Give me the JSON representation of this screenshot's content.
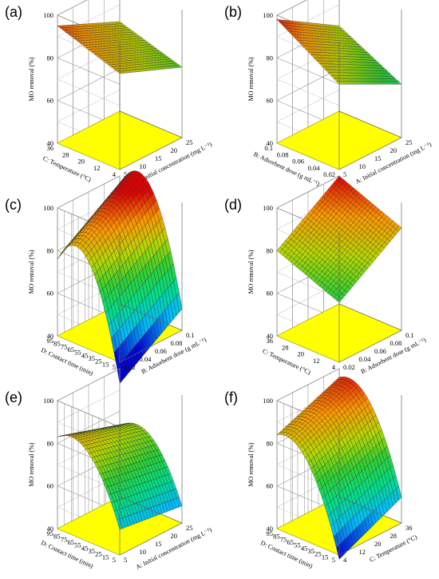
{
  "figure": {
    "z_axis_label": "MO removal (%)",
    "z_ticks": [
      "40",
      "60",
      "80",
      "100"
    ],
    "floor_color": "#ffff00",
    "colormap": [
      "#0000d8",
      "#00bfff",
      "#00e08a",
      "#2fd12f",
      "#b8d800",
      "#ff9900",
      "#e00000"
    ]
  },
  "chart_data": [
    {
      "type": "surface",
      "label": "(a)",
      "xlabel": "A: Initial concentration (mg L⁻¹)",
      "ylabel": "C: Temperature (°C)",
      "zlabel": "MO removal (%)",
      "x_ticks": [
        "5",
        "10",
        "15",
        "20",
        "25"
      ],
      "y_ticks": [
        "4",
        "12",
        "20",
        "28",
        "36"
      ],
      "z_ticks": [
        "40",
        "60",
        "80",
        "100"
      ],
      "zlim": [
        40,
        100
      ],
      "x": [
        5,
        25
      ],
      "y": [
        4,
        36
      ],
      "z_corners": {
        "x_min_y_min": 85,
        "x_max_y_min": 73,
        "x_min_y_max": 95,
        "x_max_y_max": 82
      },
      "z_curvature": {
        "x": 0,
        "y": 0
      }
    },
    {
      "type": "surface",
      "label": "(b)",
      "xlabel": "A: Initial concentration (mg L⁻¹)",
      "ylabel": "B: Adsorbent dose (g mL⁻¹)",
      "zlabel": "MO removal (%)",
      "x_ticks": [
        "5",
        "10",
        "15",
        "20",
        "25"
      ],
      "y_ticks": [
        "0.02",
        "0.04",
        "0.06",
        "0.08",
        "0.1"
      ],
      "z_ticks": [
        "40",
        "60",
        "80",
        "100"
      ],
      "zlim": [
        40,
        100
      ],
      "x": [
        5,
        25
      ],
      "y": [
        0.02,
        0.1
      ],
      "z_corners": {
        "x_min_y_min": 80,
        "x_max_y_min": 65,
        "x_min_y_max": 98,
        "x_max_y_max": 80
      },
      "z_curvature": {
        "x": 0,
        "y": 0
      }
    },
    {
      "type": "surface",
      "label": "(c)",
      "xlabel": "B: Adsorbent dose (g mL⁻¹)",
      "ylabel": "D: Contact time (min)",
      "zlabel": "MO removal (%)",
      "x_ticks": [
        "0.02",
        "0.04",
        "0.06",
        "0.08",
        "0.1"
      ],
      "y_ticks": [
        "5",
        "15",
        "25",
        "35",
        "45",
        "55",
        "65",
        "75",
        "85",
        "95"
      ],
      "z_ticks": [
        "40",
        "60",
        "80",
        "100"
      ],
      "zlim": [
        40,
        100
      ],
      "x": [
        0.02,
        0.1
      ],
      "y": [
        5,
        95
      ],
      "z_corners": {
        "x_min_y_min": 30,
        "x_max_y_min": 50,
        "x_min_y_max": 76,
        "x_max_y_max": 96
      },
      "z_curvature": {
        "x": 0,
        "y": 28
      }
    },
    {
      "type": "surface",
      "label": "(d)",
      "xlabel": "B: Adsorbent dose (g mL⁻¹)",
      "ylabel": "C: Temperature (°C)",
      "zlabel": "MO removal (%)",
      "x_ticks": [
        "0.02",
        "0.04",
        "0.06",
        "0.08",
        "0.1"
      ],
      "y_ticks": [
        "4",
        "12",
        "20",
        "28",
        "36"
      ],
      "z_ticks": [
        "40",
        "60",
        "80",
        "100"
      ],
      "zlim": [
        40,
        100
      ],
      "x": [
        0.02,
        0.1
      ],
      "y": [
        4,
        36
      ],
      "z_corners": {
        "x_min_y_min": 68,
        "x_max_y_min": 88,
        "x_min_y_max": 80,
        "x_max_y_max": 100
      },
      "z_curvature": {
        "x": 0,
        "y": 0
      }
    },
    {
      "type": "surface",
      "label": "(e)",
      "xlabel": "A: Initial concentration (mg L⁻¹)",
      "ylabel": "D: Contact time (min)",
      "zlabel": "MO removal (%)",
      "x_ticks": [
        "5",
        "10",
        "15",
        "20",
        "25"
      ],
      "y_ticks": [
        "5",
        "15",
        "25",
        "35",
        "45",
        "55",
        "65",
        "75",
        "85",
        "95"
      ],
      "z_ticks": [
        "40",
        "60",
        "80",
        "100"
      ],
      "zlim": [
        40,
        100
      ],
      "x": [
        5,
        25
      ],
      "y": [
        5,
        95
      ],
      "z_corners": {
        "x_min_y_min": 52,
        "x_max_y_min": 48,
        "x_min_y_max": 83,
        "x_max_y_max": 73
      },
      "z_curvature": {
        "x": 0,
        "y": 14
      }
    },
    {
      "type": "surface",
      "label": "(f)",
      "xlabel": "C: Temperature (°C)",
      "ylabel": "D: Contact time (min)",
      "zlabel": "MO removal (%)",
      "x_ticks": [
        "4",
        "12",
        "20",
        "28",
        "36"
      ],
      "y_ticks": [
        "5",
        "15",
        "25",
        "35",
        "45",
        "55",
        "65",
        "75",
        "85",
        "95"
      ],
      "z_ticks": [
        "40",
        "60",
        "80",
        "100"
      ],
      "zlim": [
        40,
        100
      ],
      "x": [
        4,
        36
      ],
      "y": [
        5,
        95
      ],
      "z_corners": {
        "x_min_y_min": 38,
        "x_max_y_min": 52,
        "x_min_y_max": 84,
        "x_max_y_max": 96
      },
      "z_curvature": {
        "x": 0,
        "y": 16
      }
    }
  ]
}
